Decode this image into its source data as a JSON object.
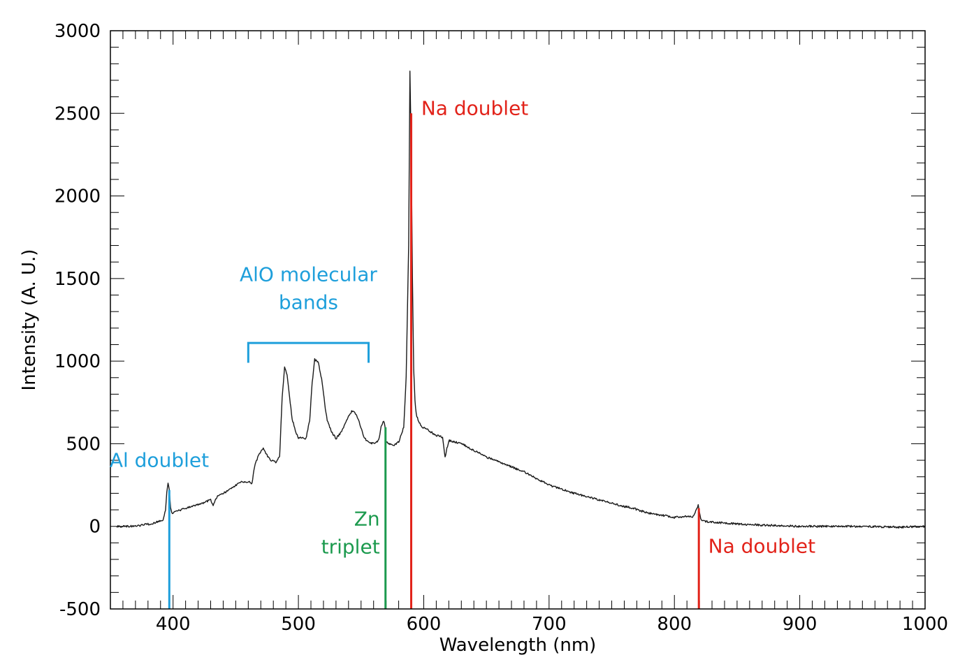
{
  "chart_data": {
    "type": "line",
    "title": "",
    "xlabel": "Wavelength (nm)",
    "ylabel": "Intensity (A. U.)",
    "xlim": [
      350,
      1000
    ],
    "ylim": [
      -500,
      3000
    ],
    "xticks": [
      400,
      500,
      600,
      700,
      800,
      900,
      1000
    ],
    "yticks": [
      -500,
      0,
      500,
      1000,
      1500,
      2000,
      2500,
      3000
    ],
    "xtick_labels": [
      "400",
      "500",
      "600",
      "700",
      "800",
      "900",
      "1000"
    ],
    "ytick_labels": [
      "-500",
      "0",
      "500",
      "1000",
      "1500",
      "2000",
      "2500",
      "3000"
    ],
    "grid": false,
    "series": [
      {
        "color": "#1a1a1a",
        "x": [
          355,
          370,
          385,
          392,
          394,
          395,
          396,
          397,
          398,
          399,
          402,
          410,
          420,
          430,
          432,
          435,
          440,
          445,
          450,
          455,
          460,
          463,
          465,
          468,
          472,
          474,
          478,
          482,
          485,
          487,
          489,
          491,
          493,
          495,
          498,
          500,
          503,
          506,
          509,
          511,
          513,
          516,
          519,
          521,
          523,
          526,
          530,
          535,
          540,
          543,
          546,
          549,
          552,
          556,
          560,
          564,
          566,
          568,
          569,
          570,
          572,
          576,
          580,
          584,
          586,
          588,
          589,
          590,
          591,
          592,
          593,
          594,
          596,
          599,
          602,
          606,
          610,
          615,
          617,
          620,
          630,
          640,
          650,
          660,
          680,
          700,
          720,
          740,
          760,
          768,
          770,
          780,
          800,
          815,
          818,
          819,
          820,
          821,
          822,
          825,
          840,
          860,
          880,
          900,
          940,
          980,
          1000
        ],
        "y": [
          0,
          0,
          20,
          40,
          100,
          210,
          260,
          220,
          110,
          80,
          90,
          110,
          130,
          160,
          130,
          180,
          200,
          220,
          250,
          270,
          270,
          260,
          360,
          430,
          470,
          440,
          400,
          390,
          420,
          780,
          960,
          920,
          780,
          650,
          570,
          530,
          540,
          530,
          640,
          870,
          1010,
          990,
          870,
          740,
          640,
          580,
          530,
          580,
          670,
          700,
          680,
          620,
          540,
          510,
          500,
          520,
          600,
          640,
          610,
          510,
          500,
          490,
          510,
          600,
          900,
          1700,
          2750,
          2300,
          1500,
          950,
          760,
          680,
          630,
          600,
          590,
          570,
          550,
          540,
          420,
          520,
          500,
          460,
          420,
          390,
          330,
          250,
          200,
          160,
          120,
          110,
          100,
          80,
          55,
          60,
          110,
          130,
          80,
          50,
          40,
          30,
          20,
          10,
          5,
          0,
          0,
          -5,
          0
        ]
      }
    ],
    "markers": [
      {
        "x": 397,
        "y_from": -500,
        "y_to": 220,
        "color": "#1e9fdb"
      },
      {
        "x": 569.5,
        "y_from": -500,
        "y_to": 600,
        "color": "#1c9a4e"
      },
      {
        "x": 590,
        "y_from": -500,
        "y_to": 2500,
        "color": "#e2231a"
      },
      {
        "x": 819.5,
        "y_from": -500,
        "y_to": 110,
        "color": "#e2231a"
      }
    ],
    "bracket": {
      "x1": 460,
      "x2": 556,
      "y_top": 1110,
      "y_bottom": 990,
      "color": "#1e9fdb"
    },
    "annotations": [
      {
        "lines": [
          "Al doublet"
        ],
        "x": 389,
        "y": 360,
        "anchor": "middle",
        "color": "#1e9fdb"
      },
      {
        "lines": [
          "AlO molecular",
          "bands"
        ],
        "x": 508,
        "y": 1400,
        "anchor": "middle",
        "color": "#1e9fdb"
      },
      {
        "lines": [
          "Zn",
          "triplet"
        ],
        "x": 565,
        "y": -80,
        "anchor": "end",
        "color": "#1c9a4e"
      },
      {
        "lines": [
          "Na doublet"
        ],
        "x": 598,
        "y": 2490,
        "anchor": "start",
        "color": "#e2231a"
      },
      {
        "lines": [
          "Na doublet"
        ],
        "x": 827,
        "y": -160,
        "anchor": "start",
        "color": "#e2231a"
      }
    ]
  }
}
